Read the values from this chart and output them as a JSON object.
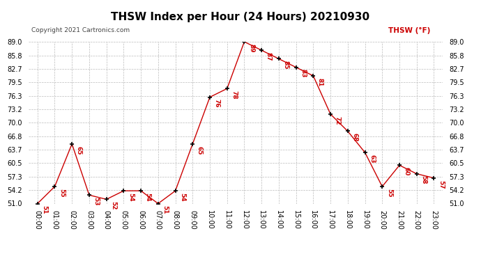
{
  "title": "THSW Index per Hour (24 Hours) 20210930",
  "copyright": "Copyright 2021 Cartronics.com",
  "legend_label": "THSW (°F)",
  "hours": [
    "00:00",
    "01:00",
    "02:00",
    "03:00",
    "04:00",
    "05:00",
    "06:00",
    "07:00",
    "08:00",
    "09:00",
    "10:00",
    "11:00",
    "12:00",
    "13:00",
    "14:00",
    "15:00",
    "16:00",
    "17:00",
    "18:00",
    "19:00",
    "20:00",
    "21:00",
    "22:00",
    "23:00"
  ],
  "values": [
    51,
    55,
    65,
    53,
    52,
    54,
    54,
    51,
    54,
    65,
    76,
    78,
    89,
    87,
    85,
    83,
    81,
    72,
    68,
    63,
    55,
    60,
    58,
    57
  ],
  "ylim_min": 51.0,
  "ylim_max": 89.0,
  "yticks": [
    51.0,
    54.2,
    57.3,
    60.5,
    63.7,
    66.8,
    70.0,
    73.2,
    76.3,
    79.5,
    82.7,
    85.8,
    89.0
  ],
  "line_color": "#cc0000",
  "marker_color": "#000000",
  "label_color": "#cc0000",
  "grid_color": "#bbbbbb",
  "background_color": "#ffffff",
  "title_fontsize": 11,
  "data_label_fontsize": 6.5,
  "tick_fontsize": 7,
  "copyright_fontsize": 6.5,
  "legend_fontsize": 7.5
}
